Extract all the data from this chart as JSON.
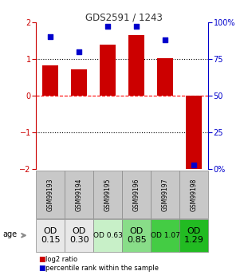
{
  "title": "GDS2591 / 1243",
  "samples": [
    "GSM99193",
    "GSM99194",
    "GSM99195",
    "GSM99196",
    "GSM99197",
    "GSM99198"
  ],
  "log2_ratios": [
    0.82,
    0.72,
    1.38,
    1.65,
    1.02,
    -2.05
  ],
  "percentile_ranks": [
    90,
    80,
    97,
    97,
    88,
    3
  ],
  "bar_color": "#cc0000",
  "dot_color": "#0000cc",
  "ylim_left": [
    -2,
    2
  ],
  "ylim_right": [
    0,
    100
  ],
  "yticks_left": [
    -2,
    -1,
    0,
    1,
    2
  ],
  "yticks_right": [
    0,
    25,
    50,
    75,
    100
  ],
  "yticklabels_right": [
    "0%",
    "25",
    "50",
    "75",
    "100%"
  ],
  "od_values": [
    "OD\n0.15",
    "OD\n0.30",
    "OD 0.63",
    "OD\n0.85",
    "OD 1.07",
    "OD\n1.29"
  ],
  "od_fontsize": [
    8,
    8,
    6.5,
    8,
    6.5,
    8
  ],
  "cell_colors": [
    "#e8e8e8",
    "#e8e8e8",
    "#c8f0c8",
    "#88dd88",
    "#44cc44",
    "#22bb22"
  ],
  "gsm_bg_color": "#c8c8c8",
  "legend_items": [
    "log2 ratio",
    "percentile rank within the sample"
  ],
  "legend_colors": [
    "#cc0000",
    "#0000cc"
  ],
  "age_label": "age",
  "title_color": "#333333",
  "left_yaxis_color": "#cc0000",
  "right_yaxis_color": "#0000cc"
}
